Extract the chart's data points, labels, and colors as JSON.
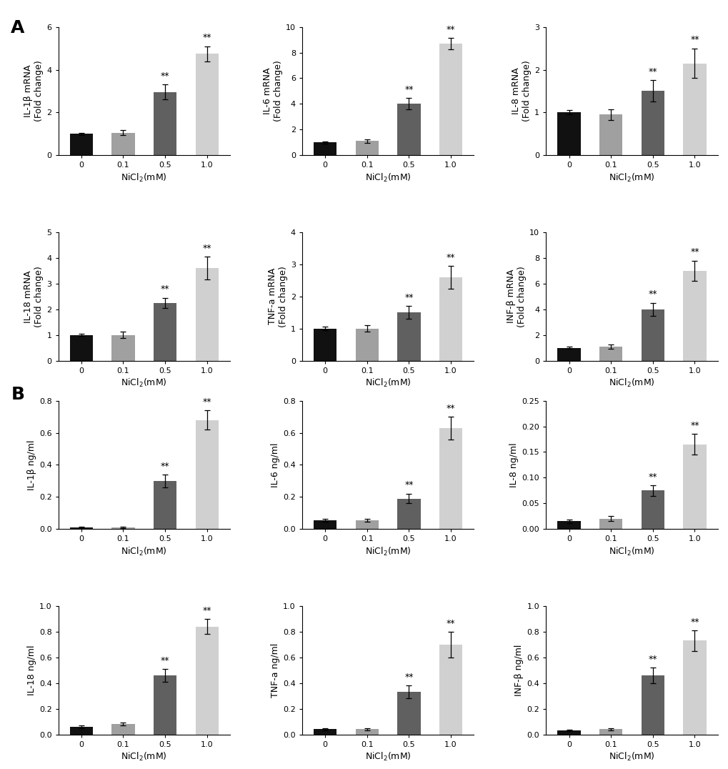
{
  "panel_A": {
    "plots": [
      {
        "ylabel": "IL-1β mRNA\n(Fold change)",
        "ylim": [
          0,
          6
        ],
        "yticks": [
          0,
          2,
          4,
          6
        ],
        "values": [
          1.0,
          1.05,
          2.95,
          4.75
        ],
        "errors": [
          0.05,
          0.12,
          0.35,
          0.35
        ],
        "sig": [
          false,
          false,
          true,
          true
        ]
      },
      {
        "ylabel": "IL-6 mRNA\n(Fold change)",
        "ylim": [
          0,
          10
        ],
        "yticks": [
          0,
          2,
          4,
          6,
          8,
          10
        ],
        "values": [
          1.0,
          1.1,
          4.0,
          8.7
        ],
        "errors": [
          0.08,
          0.15,
          0.45,
          0.45
        ],
        "sig": [
          false,
          false,
          true,
          true
        ]
      },
      {
        "ylabel": "IL-8 mRNA\n(Fold change)",
        "ylim": [
          0,
          3
        ],
        "yticks": [
          0,
          1,
          2,
          3
        ],
        "values": [
          1.0,
          0.95,
          1.5,
          2.15
        ],
        "errors": [
          0.05,
          0.12,
          0.25,
          0.35
        ],
        "sig": [
          false,
          false,
          true,
          true
        ]
      },
      {
        "ylabel": "IL-18 mRNA\n(Fold change)",
        "ylim": [
          0,
          5
        ],
        "yticks": [
          0,
          1,
          2,
          3,
          4,
          5
        ],
        "values": [
          1.0,
          1.0,
          2.25,
          3.6
        ],
        "errors": [
          0.05,
          0.12,
          0.2,
          0.45
        ],
        "sig": [
          false,
          false,
          true,
          true
        ]
      },
      {
        "ylabel": "TNF-a mRNA\n(Fold change)",
        "ylim": [
          0,
          4
        ],
        "yticks": [
          0,
          1,
          2,
          3,
          4
        ],
        "values": [
          1.0,
          1.0,
          1.5,
          2.6
        ],
        "errors": [
          0.05,
          0.1,
          0.2,
          0.35
        ],
        "sig": [
          false,
          false,
          true,
          true
        ]
      },
      {
        "ylabel": "INF-β mRNA\n(Fold change)",
        "ylim": [
          0,
          10
        ],
        "yticks": [
          0,
          2,
          4,
          6,
          8,
          10
        ],
        "values": [
          1.0,
          1.1,
          4.0,
          7.0
        ],
        "errors": [
          0.1,
          0.15,
          0.5,
          0.8
        ],
        "sig": [
          false,
          false,
          true,
          true
        ]
      }
    ]
  },
  "panel_B": {
    "plots": [
      {
        "ylabel": "IL-1β ng/ml",
        "ylim": [
          0,
          0.8
        ],
        "yticks": [
          0.0,
          0.2,
          0.4,
          0.6,
          0.8
        ],
        "ytick_labels": [
          "0.0",
          "0.2",
          "0.4",
          "0.6",
          "0.8"
        ],
        "values": [
          0.01,
          0.01,
          0.3,
          0.68
        ],
        "errors": [
          0.005,
          0.005,
          0.04,
          0.06
        ],
        "sig": [
          false,
          false,
          true,
          true
        ]
      },
      {
        "ylabel": "IL-6 ng/ml",
        "ylim": [
          0,
          0.8
        ],
        "yticks": [
          0.0,
          0.2,
          0.4,
          0.6,
          0.8
        ],
        "ytick_labels": [
          "0.0",
          "0.2",
          "0.4",
          "0.6",
          "0.8"
        ],
        "values": [
          0.055,
          0.055,
          0.19,
          0.63
        ],
        "errors": [
          0.01,
          0.01,
          0.03,
          0.07
        ],
        "sig": [
          false,
          false,
          true,
          true
        ]
      },
      {
        "ylabel": "IL-8 ng/ml",
        "ylim": [
          0,
          0.25
        ],
        "yticks": [
          0.0,
          0.05,
          0.1,
          0.15,
          0.2,
          0.25
        ],
        "ytick_labels": [
          "0.00",
          "0.05",
          "0.10",
          "0.15",
          "0.20",
          "0.25"
        ],
        "values": [
          0.015,
          0.02,
          0.075,
          0.165
        ],
        "errors": [
          0.003,
          0.005,
          0.01,
          0.02
        ],
        "sig": [
          false,
          false,
          true,
          true
        ]
      },
      {
        "ylabel": "IL-18 ng/ml",
        "ylim": [
          0,
          1.0
        ],
        "yticks": [
          0.0,
          0.2,
          0.4,
          0.6,
          0.8,
          1.0
        ],
        "ytick_labels": [
          "0.0",
          "0.2",
          "0.4",
          "0.6",
          "0.8",
          "1.0"
        ],
        "values": [
          0.06,
          0.08,
          0.46,
          0.84
        ],
        "errors": [
          0.01,
          0.01,
          0.05,
          0.06
        ],
        "sig": [
          false,
          false,
          true,
          true
        ]
      },
      {
        "ylabel": "TNF-a ng/ml",
        "ylim": [
          0,
          1.0
        ],
        "yticks": [
          0.0,
          0.2,
          0.4,
          0.6,
          0.8,
          1.0
        ],
        "ytick_labels": [
          "0.0",
          "0.2",
          "0.4",
          "0.6",
          "0.8",
          "1.0"
        ],
        "values": [
          0.04,
          0.04,
          0.33,
          0.7
        ],
        "errors": [
          0.01,
          0.01,
          0.05,
          0.1
        ],
        "sig": [
          false,
          false,
          true,
          true
        ]
      },
      {
        "ylabel": "INF-β ng/ml",
        "ylim": [
          0,
          1.0
        ],
        "yticks": [
          0.0,
          0.2,
          0.4,
          0.6,
          0.8,
          1.0
        ],
        "ytick_labels": [
          "0.0",
          "0.2",
          "0.4",
          "0.6",
          "0.8",
          "1.0"
        ],
        "values": [
          0.03,
          0.04,
          0.46,
          0.73
        ],
        "errors": [
          0.005,
          0.01,
          0.06,
          0.08
        ],
        "sig": [
          false,
          false,
          true,
          true
        ]
      }
    ]
  },
  "bar_colors": [
    "#111111",
    "#a0a0a0",
    "#606060",
    "#d0d0d0"
  ],
  "xlabel": "NiCl$_2$(mM)",
  "xtick_labels": [
    "0",
    "0.1",
    "0.5",
    "1.0"
  ],
  "sig_label": "**",
  "background_color": "#ffffff",
  "panel_label_fontsize": 18,
  "axis_label_fontsize": 9,
  "tick_fontsize": 8,
  "sig_fontsize": 9
}
